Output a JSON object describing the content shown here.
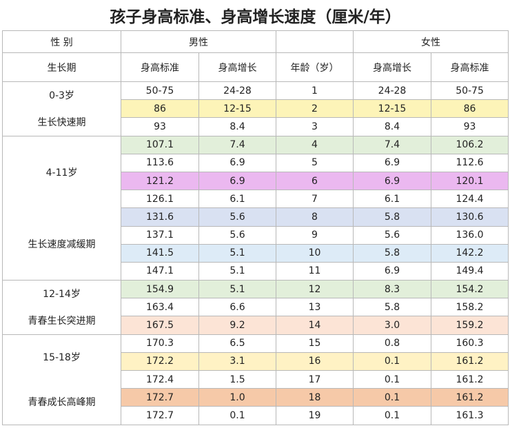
{
  "title": "孩子身高标准、身高增长速度（厘米/年）",
  "header": {
    "sex_label": "性 别",
    "period_label": "生长期",
    "male": "男性",
    "female": "女性",
    "columns": [
      "身高标准",
      "身高增长",
      "年龄（岁）",
      "身高增长",
      "身高标准"
    ]
  },
  "groups": [
    {
      "age_range": "0-3岁",
      "period": "生长快速期",
      "rows": [
        [
          "50-75",
          "24-28",
          "1",
          "24-28",
          "50-75"
        ],
        [
          "86",
          "12-15",
          "2",
          "12-15",
          "86"
        ],
        [
          "93",
          "8.4",
          "3",
          "8.4",
          "93"
        ]
      ]
    },
    {
      "age_range": "4-11岁",
      "period": "生长速度减缓期",
      "rows": [
        [
          "107.1",
          "7.4",
          "4",
          "7.4",
          "106.2"
        ],
        [
          "113.6",
          "6.9",
          "5",
          "6.9",
          "112.6"
        ],
        [
          "121.2",
          "6.9",
          "6",
          "6.9",
          "120.1"
        ],
        [
          "126.1",
          "6.1",
          "7",
          "6.1",
          "124.4"
        ],
        [
          "131.6",
          "5.6",
          "8",
          "5.8",
          "130.6"
        ],
        [
          "137.1",
          "5.6",
          "9",
          "5.6",
          "136.0"
        ],
        [
          "141.5",
          "5.1",
          "10",
          "5.8",
          "142.2"
        ],
        [
          "147.1",
          "5.1",
          "11",
          "6.9",
          "149.4"
        ]
      ]
    },
    {
      "age_range": "12-14岁",
      "period": "青春生长突进期",
      "rows": [
        [
          "154.9",
          "5.1",
          "12",
          "8.3",
          "154.2"
        ],
        [
          "163.4",
          "6.6",
          "13",
          "5.8",
          "158.2"
        ],
        [
          "167.5",
          "9.2",
          "14",
          "3.0",
          "159.2"
        ]
      ]
    },
    {
      "age_range": "15-18岁",
      "period": "青春成长高峰期",
      "rows": [
        [
          "170.3",
          "6.5",
          "15",
          "0.8",
          "160.3"
        ],
        [
          "172.2",
          "3.1",
          "16",
          "0.1",
          "161.2"
        ],
        [
          "172.4",
          "1.5",
          "17",
          "0.1",
          "161.2"
        ],
        [
          "172.7",
          "1.0",
          "18",
          "0.1",
          "161.2"
        ],
        [
          "172.7",
          "0.1",
          "19",
          "0.1",
          "161.3"
        ]
      ]
    }
  ]
}
